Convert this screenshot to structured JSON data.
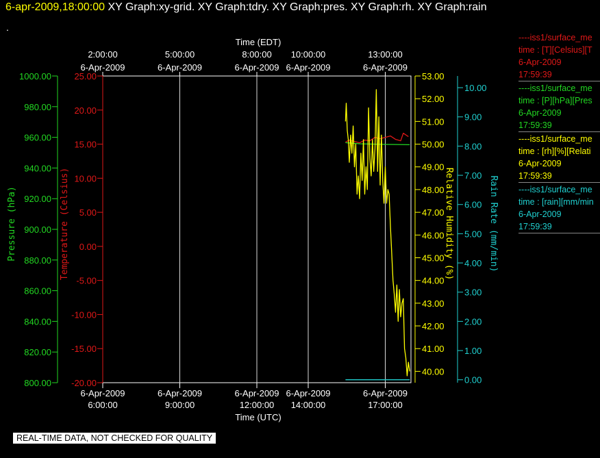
{
  "header": {
    "timestamp": "6-apr-2009,18:00:00",
    "graph_tabs": "  XY Graph:xy-grid.  XY Graph:tdry.  XY Graph:pres.  XY Graph:rh.  XY Graph:rain",
    "dot": "."
  },
  "footer": {
    "notice": "REAL-TIME DATA, NOT CHECKED FOR QUALITY"
  },
  "colors": {
    "background": "#000000",
    "temperature": "#e01818",
    "pressure": "#22d822",
    "humidity": "#ffff00",
    "rain": "#20d0d0",
    "grid": "#ffffff",
    "axis_text": "#ffffff"
  },
  "legend": [
    {
      "title": "----iss1/surface_me",
      "field": "time : [T][Celsius][T",
      "date": "6-Apr-2009",
      "time": "17:59:39",
      "color": "#e01818"
    },
    {
      "title": "----iss1/surface_me",
      "field": "time : [P][hPa][Pres",
      "date": "6-Apr-2009",
      "time": "17:59:39",
      "color": "#22d822"
    },
    {
      "title": "----iss1/surface_me",
      "field": "time : [rh][%][Relati",
      "date": "6-Apr-2009",
      "time": "17:59:39",
      "color": "#ffff00"
    },
    {
      "title": "----iss1/surface_me",
      "field": "time : [rain][mm/min",
      "date": "6-Apr-2009",
      "time": "17:59:39",
      "color": "#20d0d0"
    }
  ],
  "chart_data": {
    "type": "line",
    "grid": true,
    "x_top": {
      "label": "Time (EDT)",
      "ticks": [
        {
          "date": "6-Apr-2009",
          "time": "2:00:00",
          "hour_utc": 6
        },
        {
          "date": "6-Apr-2009",
          "time": "5:00:00",
          "hour_utc": 9
        },
        {
          "date": "6-Apr-2009",
          "time": "8:00:00",
          "hour_utc": 12
        },
        {
          "date": "6-Apr-2009",
          "time": "10:00:00",
          "hour_utc": 14
        },
        {
          "date": "6-Apr-2009",
          "time": "13:00:00",
          "hour_utc": 17
        }
      ]
    },
    "x_bottom": {
      "label": "Time (UTC)",
      "range_hours_utc": [
        6,
        18
      ],
      "ticks": [
        {
          "date": "6-Apr-2009",
          "time": "6:00:00",
          "hour_utc": 6
        },
        {
          "date": "6-Apr-2009",
          "time": "9:00:00",
          "hour_utc": 9
        },
        {
          "date": "6-Apr-2009",
          "time": "12:00:00",
          "hour_utc": 12
        },
        {
          "date": "6-Apr-2009",
          "time": "14:00:00",
          "hour_utc": 14
        },
        {
          "date": "6-Apr-2009",
          "time": "17:00:00",
          "hour_utc": 17
        }
      ]
    },
    "axes": {
      "pressure": {
        "label": "Pressure (hPa)",
        "range": [
          800,
          1000
        ],
        "ticks": [
          "800.00",
          "820.00",
          "840.00",
          "860.00",
          "880.00",
          "900.00",
          "920.00",
          "940.00",
          "960.00",
          "980.00",
          "1000.00"
        ]
      },
      "temperature": {
        "label": "Temperature (Celsius)",
        "range": [
          -20,
          25
        ],
        "ticks": [
          "-20.00",
          "-15.00",
          "-10.00",
          "-5.00",
          "0.00",
          "5.00",
          "10.00",
          "15.00",
          "20.00",
          "25.00"
        ]
      },
      "humidity": {
        "label": "Relative Humidity (%)",
        "range": [
          39.5,
          53
        ],
        "ticks": [
          "40.00",
          "41.00",
          "42.00",
          "43.00",
          "44.00",
          "45.00",
          "46.00",
          "47.00",
          "48.00",
          "49.00",
          "50.00",
          "51.00",
          "52.00",
          "53.00"
        ]
      },
      "rain": {
        "label": "Rain Rate (mm/min)",
        "range": [
          -0.1,
          10.4
        ],
        "ticks": [
          "0.00",
          "1.00",
          "2.00",
          "3.00",
          "4.00",
          "5.00",
          "6.00",
          "7.00",
          "8.00",
          "9.00",
          "10.00"
        ]
      }
    },
    "series": [
      {
        "key": "temperature",
        "x": [
          15.45,
          15.6,
          15.8,
          16.0,
          16.2,
          16.4,
          16.6,
          16.8,
          17.0,
          17.2,
          17.4,
          17.6,
          17.7,
          17.9
        ],
        "values": [
          15.3,
          15.6,
          15.4,
          15.2,
          15.6,
          15.5,
          16.0,
          15.8,
          16.0,
          16.2,
          15.7,
          15.5,
          16.6,
          16.1
        ]
      },
      {
        "key": "pressure",
        "x": [
          15.45,
          16.0,
          16.5,
          17.0,
          17.5,
          17.95
        ],
        "values": [
          956.5,
          955.8,
          955.6,
          955.4,
          955.3,
          955.2
        ]
      },
      {
        "key": "humidity",
        "x": [
          15.45,
          15.48,
          15.52,
          15.56,
          15.6,
          15.65,
          15.7,
          15.75,
          15.8,
          15.85,
          15.9,
          15.95,
          16.0,
          16.05,
          16.1,
          16.15,
          16.2,
          16.25,
          16.3,
          16.35,
          16.4,
          16.45,
          16.5,
          16.55,
          16.6,
          16.65,
          16.7,
          16.75,
          16.8,
          16.85,
          16.9,
          16.95,
          17.0,
          17.05,
          17.1,
          17.15,
          17.2,
          17.25,
          17.3,
          17.35,
          17.4,
          17.45,
          17.5,
          17.55,
          17.6,
          17.65,
          17.7,
          17.75,
          17.8,
          17.85,
          17.9,
          17.95
        ],
        "values": [
          51.0,
          51.8,
          50.6,
          50.2,
          49.2,
          50.4,
          49.6,
          50.8,
          49.0,
          50.0,
          47.8,
          48.6,
          47.6,
          49.6,
          48.4,
          50.2,
          47.8,
          49.0,
          48.0,
          51.6,
          49.4,
          48.6,
          50.2,
          48.8,
          49.8,
          52.4,
          48.8,
          51.2,
          48.2,
          50.4,
          48.4,
          47.4,
          49.0,
          47.4,
          48.0,
          47.8,
          46.4,
          45.2,
          44.0,
          43.4,
          42.6,
          43.8,
          42.2,
          43.6,
          42.4,
          43.0,
          43.2,
          41.0,
          40.6,
          39.8,
          40.4,
          40.0
        ]
      },
      {
        "key": "rain",
        "x": [
          15.45,
          17.95
        ],
        "values": [
          0.0,
          0.0
        ]
      }
    ]
  }
}
